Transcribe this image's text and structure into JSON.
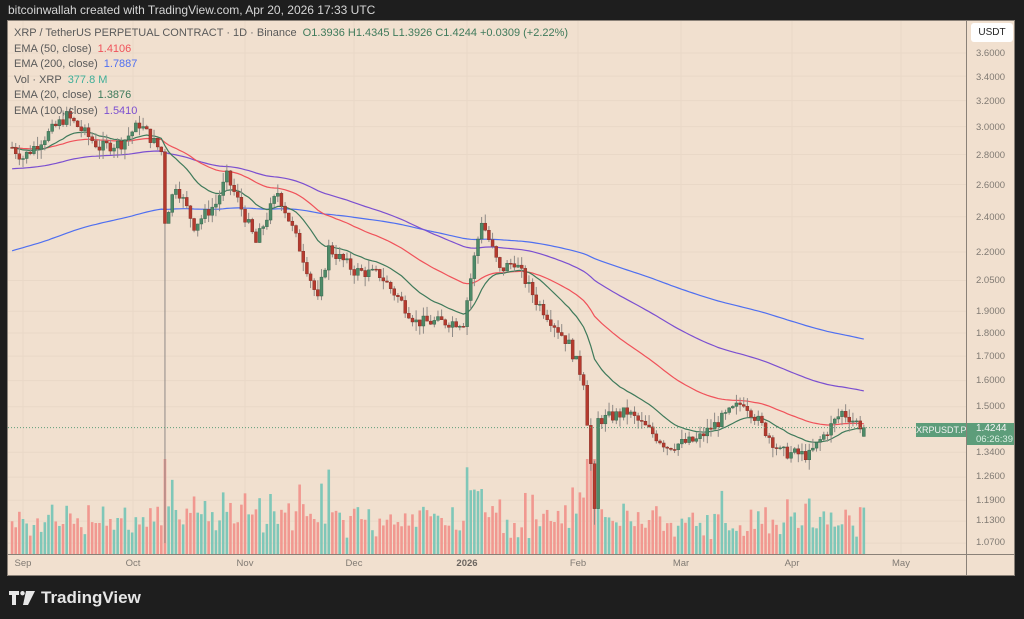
{
  "header": {
    "attribution": "bitcoinwallah created with TradingView.com, Apr 20, 2026 17:33 UTC"
  },
  "legend": {
    "symbol_line": "XRP / TetherUS PERPETUAL CONTRACT · 1D · Binance",
    "ohlc": "O1.3936  H1.4345  L1.3926  C1.4244  +0.0309 (+2.22%)",
    "indicators": [
      {
        "label": "EMA (50, close)",
        "value": "1.4106",
        "color": "#f0525a"
      },
      {
        "label": "EMA (200, close)",
        "value": "1.7887",
        "color": "#4f6ff0"
      },
      {
        "label": "Vol · XRP",
        "value": "377.8 M",
        "color": "#3fae98"
      },
      {
        "label": "EMA (20, close)",
        "value": "1.3876",
        "color": "#3f7a5b"
      },
      {
        "label": "EMA (100, close)",
        "value": "1.5410",
        "color": "#7b4fd0"
      }
    ]
  },
  "price_axis": {
    "currency_button": "USDT",
    "ticks": [
      "3.6000",
      "3.4000",
      "3.2000",
      "3.0000",
      "2.8000",
      "2.6000",
      "2.4000",
      "2.2000",
      "2.0500",
      "1.9000",
      "1.8000",
      "1.7000",
      "1.6000",
      "1.5000",
      "1.3400",
      "1.2600",
      "1.1900",
      "1.1300",
      "1.0700"
    ],
    "symbol_tag": "XRPUSDT.P",
    "last_price": "1.4244",
    "countdown": "06:26:39"
  },
  "time_axis": {
    "ticks": [
      "Sep",
      "Oct",
      "Nov",
      "Dec",
      "2026",
      "Feb",
      "Mar",
      "Apr",
      "May"
    ]
  },
  "footer": {
    "brand": "TradingView"
  },
  "colors": {
    "background": "#f1e0cf",
    "up": "#4e8a68",
    "down": "#b53a2e",
    "vol_up": "#7fc7b8",
    "vol_down": "#f19890",
    "ema20": "#3f7a5b",
    "ema50": "#f0525a",
    "ema100": "#7b4fd0",
    "ema200": "#4f6ff0"
  },
  "chart_data": {
    "type": "candlestick",
    "title": "XRP / TetherUS PERPETUAL CONTRACT · 1D · Binance",
    "xlabel": "",
    "ylabel": "USDT",
    "y_scale": "log",
    "ylim": [
      1.05,
      3.7
    ],
    "x_range": [
      "2025-08-29",
      "2026-04-20"
    ],
    "legend": [
      "EMA (50, close)",
      "EMA (200, close)",
      "Vol · XRP",
      "EMA (20, close)",
      "EMA (100, close)"
    ],
    "last": {
      "open": 1.3936,
      "high": 1.4345,
      "low": 1.3926,
      "close": 1.4244,
      "change": 0.0309,
      "change_pct": 2.22,
      "volume": "377.8M"
    },
    "ema_last": {
      "ema20": 1.3876,
      "ema50": 1.4106,
      "ema100": 1.541,
      "ema200": 1.7887
    },
    "close_path": [
      {
        "date": "2025-08-29",
        "close": 2.85
      },
      {
        "date": "2025-09-01",
        "close": 2.78
      },
      {
        "date": "2025-09-08",
        "close": 2.95
      },
      {
        "date": "2025-09-13",
        "close": 3.08
      },
      {
        "date": "2025-09-22",
        "close": 2.85
      },
      {
        "date": "2025-09-28",
        "close": 2.88
      },
      {
        "date": "2025-10-03",
        "close": 3.02
      },
      {
        "date": "2025-10-09",
        "close": 2.82
      },
      {
        "date": "2025-10-10",
        "close": 2.38
      },
      {
        "date": "2025-10-13",
        "close": 2.6
      },
      {
        "date": "2025-10-18",
        "close": 2.35
      },
      {
        "date": "2025-10-24",
        "close": 2.48
      },
      {
        "date": "2025-10-27",
        "close": 2.65
      },
      {
        "date": "2025-11-04",
        "close": 2.25
      },
      {
        "date": "2025-11-10",
        "close": 2.55
      },
      {
        "date": "2025-11-21",
        "close": 1.95
      },
      {
        "date": "2025-11-24",
        "close": 2.22
      },
      {
        "date": "2025-12-01",
        "close": 2.1
      },
      {
        "date": "2025-12-08",
        "close": 2.08
      },
      {
        "date": "2025-12-18",
        "close": 1.85
      },
      {
        "date": "2025-12-31",
        "close": 1.85
      },
      {
        "date": "2026-01-05",
        "close": 2.38
      },
      {
        "date": "2026-01-10",
        "close": 2.1
      },
      {
        "date": "2026-01-14",
        "close": 2.15
      },
      {
        "date": "2026-01-20",
        "close": 1.95
      },
      {
        "date": "2026-01-29",
        "close": 1.75
      },
      {
        "date": "2026-02-02",
        "close": 1.6
      },
      {
        "date": "2026-02-05",
        "close": 1.15
      },
      {
        "date": "2026-02-06",
        "close": 1.45
      },
      {
        "date": "2026-02-14",
        "close": 1.48
      },
      {
        "date": "2026-02-25",
        "close": 1.36
      },
      {
        "date": "2026-03-05",
        "close": 1.38
      },
      {
        "date": "2026-03-18",
        "close": 1.52
      },
      {
        "date": "2026-03-28",
        "close": 1.34
      },
      {
        "date": "2026-04-05",
        "close": 1.33
      },
      {
        "date": "2026-04-14",
        "close": 1.48
      },
      {
        "date": "2026-04-20",
        "close": 1.4244
      }
    ]
  }
}
